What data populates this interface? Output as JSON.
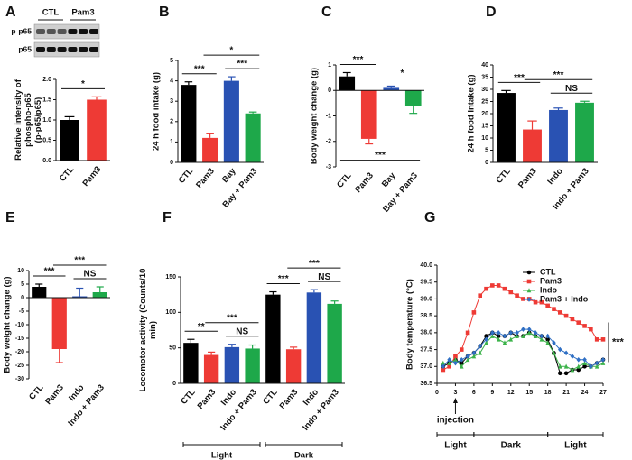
{
  "chart_data": [
    {
      "type": "bar",
      "panel": "A",
      "ylabel": "Relative intensity of phospho-p65 (p-p65/p65)",
      "blot": {
        "columns": [
          "CTL",
          "Pam3"
        ],
        "rows": [
          "p-p65",
          "p65"
        ]
      },
      "categories": [
        "CTL",
        "Pam3"
      ],
      "values": [
        1.0,
        1.5
      ],
      "errors": [
        0.08,
        0.07
      ],
      "colors": [
        "#000000",
        "#ee3a35"
      ],
      "ylim": [
        0,
        2
      ],
      "yticks": [
        {
          "value": 0,
          "label": "0.0"
        },
        0.5,
        {
          "value": 1,
          "label": "1.0"
        },
        1.5,
        {
          "value": 2,
          "label": "2.0"
        }
      ],
      "comparisons": [
        {
          "label": "*",
          "pair": [
            0,
            1
          ]
        }
      ]
    },
    {
      "type": "bar",
      "panel": "B",
      "ylabel": "24 h food intake (g)",
      "categories": [
        "CTL",
        "Pam3",
        "Bay",
        "Bay + Pam3"
      ],
      "values": [
        3.8,
        1.2,
        4.0,
        2.4
      ],
      "errors": [
        0.15,
        0.2,
        0.2,
        0.07
      ],
      "colors": [
        "#000000",
        "#ee3a35",
        "#2952b3",
        "#1ea84a"
      ],
      "ylim": [
        0,
        5
      ],
      "yticks": [
        0,
        1,
        2,
        3,
        4,
        5
      ],
      "comparisons": [
        {
          "label": "***",
          "pair": [
            0,
            1
          ]
        },
        {
          "label": "***",
          "pair": [
            2,
            3
          ]
        },
        {
          "label": "*",
          "pair": [
            1,
            3
          ]
        }
      ]
    },
    {
      "type": "bar",
      "panel": "C",
      "ylabel": "Body weight change (g)",
      "categories": [
        "CTL",
        "Pam3",
        "Bay",
        "Bay + Pam3"
      ],
      "values": [
        0.55,
        -1.9,
        0.1,
        -0.6
      ],
      "errors": [
        0.15,
        0.2,
        0.07,
        0.3
      ],
      "colors": [
        "#000000",
        "#ee3a35",
        "#2952b3",
        "#1ea84a"
      ],
      "ylim": [
        -3,
        1
      ],
      "yticks": [
        -3,
        -2,
        -1,
        0,
        1
      ],
      "comparisons": [
        {
          "label": "***",
          "pair": [
            0,
            1
          ]
        },
        {
          "label": "*",
          "pair": [
            2,
            3
          ]
        },
        {
          "label": "***",
          "pair": [
            0,
            3
          ],
          "below": true
        }
      ]
    },
    {
      "type": "bar",
      "panel": "D",
      "ylabel": "24 h food intake (g)",
      "categories": [
        "CTL",
        "Pam3",
        "Indo",
        "Indo + Pam3"
      ],
      "values": [
        28.5,
        13.5,
        21.5,
        24.5
      ],
      "errors": [
        1,
        3.5,
        0.8,
        0.6
      ],
      "colors": [
        "#000000",
        "#ee3a35",
        "#2952b3",
        "#1ea84a"
      ],
      "ylim": [
        0,
        40
      ],
      "yticks": [
        0,
        5,
        10,
        15,
        20,
        25,
        30,
        35,
        40
      ],
      "comparisons": [
        {
          "label": "***",
          "pair": [
            0,
            1
          ]
        },
        {
          "label": "NS",
          "pair": [
            2,
            3
          ]
        },
        {
          "label": "***",
          "pair": [
            1,
            3
          ]
        }
      ]
    },
    {
      "type": "bar",
      "panel": "E",
      "ylabel": "Body weight change (g)",
      "categories": [
        "CTL",
        "Pam3",
        "Indo",
        "Indo + Pam3"
      ],
      "values": [
        4,
        -19,
        0.5,
        2
      ],
      "errors": [
        1,
        5,
        3,
        2
      ],
      "colors": [
        "#000000",
        "#ee3a35",
        "#2952b3",
        "#1ea84a"
      ],
      "ylim": [
        -30,
        10
      ],
      "yticks": [
        -30,
        -25,
        -20,
        -15,
        -10,
        -5,
        0,
        5,
        10
      ],
      "comparisons": [
        {
          "label": "***",
          "pair": [
            0,
            1
          ]
        },
        {
          "label": "NS",
          "pair": [
            2,
            3
          ]
        },
        {
          "label": "***",
          "pair": [
            1,
            3
          ]
        }
      ]
    },
    {
      "type": "bar",
      "panel": "F",
      "ylabel": "Locomotor activity (Counts/10 min)",
      "categories": [
        "CTL",
        "Pam3",
        "Indo",
        "Indo + Pam3",
        "CTL",
        "Pam3",
        "Indo",
        "Indo + Pam3"
      ],
      "values": [
        57,
        40,
        51,
        49,
        125,
        48,
        128,
        112
      ],
      "errors": [
        5,
        4,
        4,
        5,
        4,
        3,
        4,
        4
      ],
      "colors": [
        "#000000",
        "#ee3a35",
        "#2952b3",
        "#1ea84a",
        "#000000",
        "#ee3a35",
        "#2952b3",
        "#1ea84a"
      ],
      "groups": [
        "Light",
        "Dark"
      ],
      "ylim": [
        0,
        150
      ],
      "yticks": [
        0,
        50,
        100,
        150
      ],
      "comparisons": [
        {
          "label": "**",
          "pair": [
            0,
            1
          ]
        },
        {
          "label": "NS",
          "pair": [
            2,
            3
          ]
        },
        {
          "label": "***",
          "pair": [
            1,
            3
          ]
        },
        {
          "label": "***",
          "pair": [
            4,
            5
          ]
        },
        {
          "label": "NS",
          "pair": [
            6,
            7
          ]
        },
        {
          "label": "***",
          "pair": [
            5,
            7
          ]
        }
      ]
    },
    {
      "type": "line",
      "panel": "G",
      "ylabel": "Body temperature (°C)",
      "x": [
        1,
        2,
        3,
        4,
        5,
        6,
        7,
        8,
        9,
        10,
        11,
        12,
        13,
        14,
        15,
        16,
        17,
        18,
        19,
        20,
        21,
        22,
        23,
        24,
        25,
        26,
        27
      ],
      "series": [
        {
          "name": "CTL",
          "color": "#000000",
          "marker": "circle",
          "values": [
            37.0,
            37.1,
            37.2,
            37.1,
            37.3,
            37.4,
            37.6,
            37.9,
            38.0,
            37.9,
            37.9,
            38.0,
            37.9,
            37.9,
            38.0,
            37.9,
            37.9,
            37.8,
            37.4,
            36.8,
            36.8,
            36.9,
            36.9,
            37.0,
            37.0,
            37.1,
            37.2
          ]
        },
        {
          "name": "Pam3",
          "color": "#ee3a35",
          "marker": "square",
          "values": [
            36.9,
            37.0,
            37.3,
            37.5,
            38.0,
            38.6,
            39.1,
            39.3,
            39.4,
            39.4,
            39.3,
            39.2,
            39.1,
            39.0,
            39.0,
            38.9,
            38.9,
            38.8,
            38.7,
            38.6,
            38.5,
            38.4,
            38.3,
            38.2,
            38.1,
            37.8,
            37.8
          ]
        },
        {
          "name": "Indo",
          "color": "#3cb34a",
          "marker": "triangle",
          "values": [
            37.1,
            37.1,
            37.2,
            37.0,
            37.2,
            37.3,
            37.4,
            37.7,
            37.9,
            37.8,
            37.7,
            37.8,
            37.9,
            37.9,
            38.0,
            37.9,
            37.8,
            37.7,
            37.4,
            37.0,
            37.0,
            36.9,
            37.0,
            37.1,
            37.0,
            37.0,
            37.1
          ]
        },
        {
          "name": "Pam3 + Indo",
          "color": "#2f6fc4",
          "marker": "diamond",
          "values": [
            37.0,
            37.2,
            37.1,
            37.2,
            37.3,
            37.4,
            37.6,
            37.8,
            38.0,
            38.0,
            37.9,
            38.0,
            38.0,
            38.1,
            38.1,
            38.0,
            37.9,
            37.9,
            37.7,
            37.5,
            37.4,
            37.3,
            37.2,
            37.2,
            37.0,
            37.1,
            37.2
          ]
        }
      ],
      "xlim": [
        0,
        27
      ],
      "xticks": [
        0,
        3,
        6,
        9,
        12,
        15,
        18,
        21,
        24,
        27
      ],
      "ylim": [
        36.5,
        40
      ],
      "yticks": [
        36.5,
        {
          "value": 37,
          "label": "37.0"
        },
        37.5,
        {
          "value": 38,
          "label": "38.0"
        },
        38.5,
        {
          "value": 39,
          "label": "39.0"
        },
        39.5,
        {
          "value": 40,
          "label": "40.0"
        }
      ],
      "injection": {
        "label": "injection",
        "x": 3
      },
      "periods": [
        {
          "label": "Light",
          "range": [
            0,
            6
          ]
        },
        {
          "label": "Dark",
          "range": [
            6,
            18
          ]
        },
        {
          "label": "Light",
          "range": [
            18,
            27
          ]
        }
      ],
      "significance": "***"
    }
  ]
}
